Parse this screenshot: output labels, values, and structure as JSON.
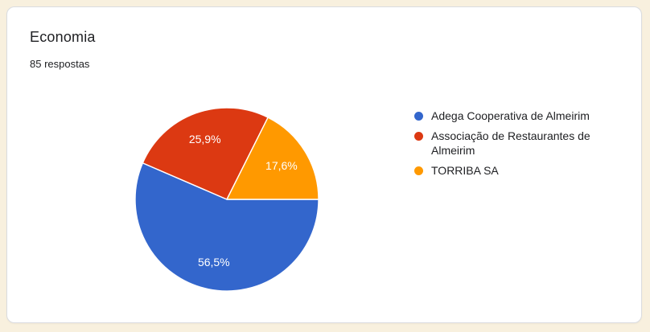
{
  "page": {
    "background_color": "#f8f0de",
    "card_background": "#ffffff",
    "card_border_color": "#dadce0"
  },
  "card": {
    "title": "Economia",
    "responses_count": "85 respostas"
  },
  "chart_data": {
    "type": "pie",
    "title": "Economia",
    "responses_total": 85,
    "start_angle_deg": 0,
    "direction": "clockwise",
    "legend_position": "right",
    "grid": false,
    "percent_label_color": "#ffffff",
    "slice_separator_color": "#ffffff",
    "slices": [
      {
        "label": "Adega Cooperativa de Almeirim",
        "percent": 56.5,
        "percent_display": "56,5%",
        "color": "#3366cc"
      },
      {
        "label": "Associação de Restaurantes de Almeirim",
        "percent": 25.9,
        "percent_display": "25,9%",
        "color": "#dc3912"
      },
      {
        "label": "TORRIBA SA",
        "percent": 17.6,
        "percent_display": "17,6%",
        "color": "#ff9900"
      }
    ]
  }
}
